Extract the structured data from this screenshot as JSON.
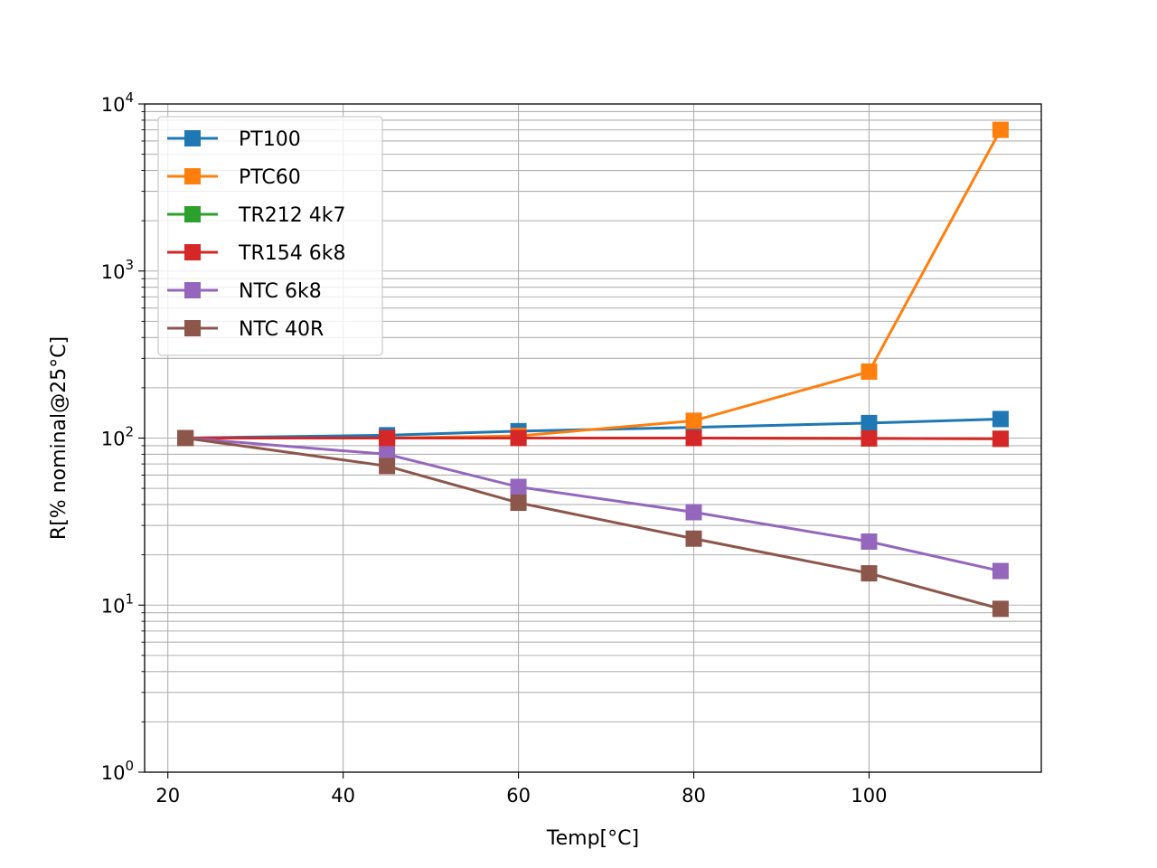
{
  "chart_data": {
    "type": "line",
    "title": "",
    "xlabel": "Temp[°C]",
    "ylabel": "R[% nominal@25°C]",
    "xlim": [
      17.35,
      119.65
    ],
    "ylim": [
      1,
      10000
    ],
    "yscale": "log",
    "grid": true,
    "legend_position": "top-left",
    "x_ticks": [
      20,
      40,
      60,
      80,
      100
    ],
    "y_tick_exponents": [
      0,
      1,
      2,
      3,
      4
    ],
    "x": [
      22,
      45,
      60,
      80,
      100,
      115
    ],
    "marker": "square",
    "series": [
      {
        "name": "PT100",
        "color": "#1f77b4",
        "values": [
          100,
          104,
          110,
          116,
          123,
          130
        ]
      },
      {
        "name": "PTC60",
        "color": "#ff7f0e",
        "values": [
          100,
          100,
          103,
          127,
          250,
          7000
        ]
      },
      {
        "name": "TR212 4k7",
        "color": "#2ca02c",
        "values": [
          100,
          100,
          100,
          100,
          99.5,
          99
        ]
      },
      {
        "name": "TR154 6k8",
        "color": "#d62728",
        "values": [
          100,
          100,
          100,
          100,
          99.5,
          99
        ]
      },
      {
        "name": "NTC 6k8",
        "color": "#9467bd",
        "values": [
          100,
          80,
          51,
          36,
          24,
          16
        ]
      },
      {
        "name": "NTC 40R",
        "color": "#8c564b",
        "values": [
          100,
          68,
          41,
          25,
          15.5,
          9.5
        ]
      }
    ]
  }
}
